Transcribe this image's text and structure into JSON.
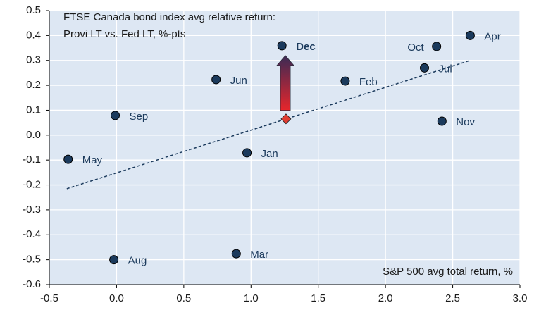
{
  "chart_data": {
    "type": "scatter",
    "title": [
      "FTSE Canada bond index avg relative return:",
      "Provi LT vs. Fed LT, %-pts"
    ],
    "x_label": "S&P 500 avg total return, %",
    "series": [
      {
        "color": "#1b3a5c",
        "labels": [
          "Apr",
          "Oct",
          "Jul",
          "Nov",
          "Dec",
          "Jun",
          "Feb",
          "Sep",
          "May",
          "Jan",
          "Aug",
          "Mar"
        ],
        "x": [
          2.63,
          2.38,
          2.29,
          2.42,
          1.23,
          0.74,
          1.7,
          -0.01,
          -0.36,
          0.97,
          -0.02,
          0.89
        ],
        "values": [
          0.4,
          0.356,
          0.27,
          0.056,
          0.359,
          0.223,
          0.217,
          0.079,
          -0.097,
          -0.071,
          -0.5,
          -0.476
        ]
      }
    ],
    "highlight": {
      "x": 1.26,
      "value": 0.065,
      "color": "#e03c31"
    },
    "trendline": {
      "x": [
        -0.37,
        2.63
      ],
      "values": [
        -0.215,
        0.3
      ],
      "color": "#1b3a5c"
    },
    "xlim": [
      -0.5,
      3.0
    ],
    "xticks": [
      -0.5,
      {
        "value": 0,
        "label": "0.0"
      },
      0.5,
      {
        "value": 1,
        "label": "1.0"
      },
      1.5,
      {
        "value": 2,
        "label": "2.0"
      },
      2.5,
      {
        "value": 3,
        "label": "3.0"
      }
    ],
    "ylim": [
      -0.6,
      0.5
    ],
    "yticks": [
      -0.6,
      -0.5,
      -0.4,
      -0.3,
      -0.2,
      -0.1,
      {
        "value": 0,
        "label": "0.0"
      },
      0.1,
      0.2,
      0.3,
      0.4,
      0.5
    ],
    "grid": true,
    "background": "#dde7f3"
  }
}
